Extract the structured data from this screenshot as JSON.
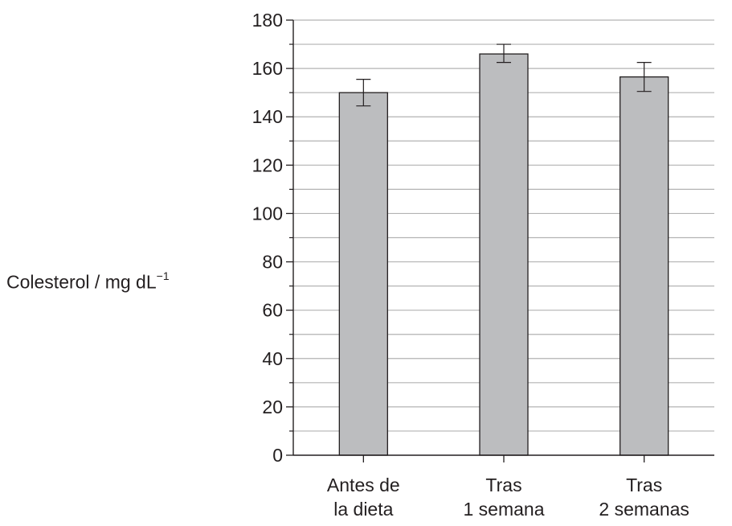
{
  "chart_data": {
    "type": "bar",
    "title": "",
    "xlabel": "",
    "ylabel": {
      "base": "Colesterol / mg dL",
      "superscript": "−1"
    },
    "ylim": [
      0,
      180
    ],
    "y_ticks": [
      0,
      20,
      40,
      60,
      80,
      100,
      120,
      140,
      160,
      180
    ],
    "grid": true,
    "grid_step": 10,
    "categories": [
      [
        "Antes de",
        "la dieta"
      ],
      [
        "Tras",
        "1 semana"
      ],
      [
        "Tras",
        "2 semanas"
      ]
    ],
    "values": [
      150,
      166,
      156.5
    ],
    "error_bars": [
      {
        "low": 144.5,
        "high": 155.5
      },
      {
        "low": 162.5,
        "high": 170
      },
      {
        "low": 150.5,
        "high": 162.5
      }
    ],
    "colors": {
      "bar_fill": "#bcbdbf",
      "bar_stroke": "#231f20",
      "axis": "#231f20",
      "grid": "#b3b3b3"
    }
  }
}
